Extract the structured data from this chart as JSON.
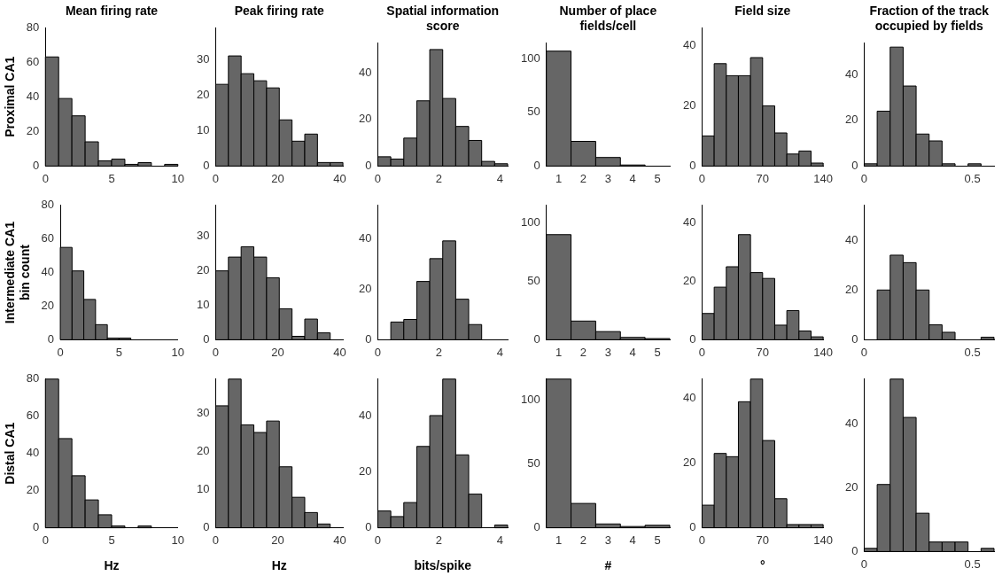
{
  "chart_data": [
    {
      "type": "histogram",
      "title": "Mean firing rate",
      "ylabel": "Proximal CA1",
      "color": "#666666",
      "bins": [
        0,
        1,
        2,
        3,
        4,
        5,
        6,
        7,
        8,
        9,
        10
      ],
      "values": [
        63,
        39,
        29,
        14,
        3,
        4,
        1,
        2,
        0,
        1
      ],
      "xlim": [
        0,
        10
      ],
      "xticks": [
        0,
        5,
        10
      ],
      "ylim": [
        0,
        80
      ],
      "yticks": [
        0,
        20,
        40,
        60,
        80
      ]
    },
    {
      "type": "histogram",
      "title": "Peak firing rate",
      "color": "#666666",
      "bins": [
        0,
        4.1,
        8.2,
        12.3,
        16.4,
        20.5,
        24.6,
        28.7,
        32.8,
        36.9,
        41
      ],
      "values": [
        23,
        31,
        26,
        24,
        22,
        13,
        7,
        9,
        1,
        1
      ],
      "xlim": [
        0,
        41
      ],
      "xticks": [
        0,
        20,
        40
      ],
      "ylim": [
        0,
        39
      ],
      "yticks": [
        0,
        10,
        20,
        30
      ]
    },
    {
      "type": "histogram",
      "title": "Spatial information score",
      "color": "#666666",
      "bins": [
        0,
        0.425,
        0.85,
        1.275,
        1.7,
        2.125,
        2.55,
        2.975,
        3.4,
        3.825,
        4.25
      ],
      "values": [
        4,
        3,
        12,
        28,
        50,
        29,
        17,
        11,
        2,
        1
      ],
      "xlim": [
        0,
        4.25
      ],
      "xticks": [
        0,
        2,
        4
      ],
      "ylim": [
        0,
        53
      ],
      "yticks": [
        0,
        20,
        40
      ]
    },
    {
      "type": "histogram",
      "title": "Number of place fields/cell",
      "color": "#666666",
      "bins": [
        0.5,
        1.5,
        2.5,
        3.5,
        4.5,
        5.5
      ],
      "values": [
        107,
        23,
        8,
        1,
        0
      ],
      "xlim": [
        0.5,
        5.5
      ],
      "xticks": [
        1,
        2,
        3,
        4,
        5
      ],
      "ylim": [
        0,
        115
      ],
      "yticks": [
        0,
        50,
        100
      ]
    },
    {
      "type": "histogram",
      "title": "Field size",
      "color": "#666666",
      "bins": [
        0,
        14,
        28,
        42,
        56,
        70,
        84,
        98,
        112,
        126,
        140
      ],
      "values": [
        10,
        34,
        30,
        30,
        36,
        20,
        11,
        4,
        5,
        1
      ],
      "xlim": [
        0,
        140
      ],
      "xticks": [
        0,
        70,
        140
      ],
      "ylim": [
        0,
        46
      ],
      "yticks": [
        0,
        20,
        40
      ]
    },
    {
      "type": "histogram",
      "title": "Fraction of the track occupied by fields",
      "color": "#666666",
      "bins": [
        0,
        0.06,
        0.12,
        0.18,
        0.24,
        0.3,
        0.36,
        0.42,
        0.48,
        0.54,
        0.6
      ],
      "values": [
        1,
        24,
        52,
        35,
        14,
        11,
        1,
        0,
        1,
        0
      ],
      "xlim": [
        0,
        0.6
      ],
      "xticks": [
        0,
        0.5
      ],
      "ylim": [
        0,
        54
      ],
      "yticks": [
        0,
        20,
        40
      ]
    },
    {
      "type": "histogram",
      "ylabel": "Intermediate CA1\nbin count",
      "color": "#666666",
      "bins": [
        0,
        1,
        2,
        3,
        4,
        5,
        6,
        7,
        8,
        9,
        10
      ],
      "values": [
        55,
        41,
        24,
        9,
        1,
        1,
        0,
        0,
        0,
        0
      ],
      "xlim": [
        0,
        10
      ],
      "xticks": [
        0,
        5,
        10
      ],
      "ylim": [
        0,
        80
      ],
      "yticks": [
        0,
        20,
        40,
        60,
        80
      ]
    },
    {
      "type": "histogram",
      "color": "#666666",
      "bins": [
        0,
        4.1,
        8.2,
        12.3,
        16.4,
        20.5,
        24.6,
        28.7,
        32.8,
        36.9,
        41
      ],
      "values": [
        20,
        24,
        27,
        24,
        18,
        9,
        1,
        6,
        2,
        0
      ],
      "xlim": [
        0,
        41
      ],
      "xticks": [
        0,
        20,
        40
      ],
      "ylim": [
        0,
        39
      ],
      "yticks": [
        0,
        10,
        20,
        30
      ]
    },
    {
      "type": "histogram",
      "color": "#666666",
      "bins": [
        0,
        0.425,
        0.85,
        1.275,
        1.7,
        2.125,
        2.55,
        2.975,
        3.4,
        3.825,
        4.25
      ],
      "values": [
        0,
        7,
        8,
        23,
        32,
        39,
        16,
        6,
        0,
        0
      ],
      "xlim": [
        0,
        4.25
      ],
      "xticks": [
        0,
        2,
        4
      ],
      "ylim": [
        0,
        53
      ],
      "yticks": [
        0,
        20,
        40
      ]
    },
    {
      "type": "histogram",
      "color": "#666666",
      "bins": [
        0.5,
        1.5,
        2.5,
        3.5,
        4.5,
        5.5
      ],
      "values": [
        90,
        16,
        7,
        2,
        1
      ],
      "xlim": [
        0.5,
        5.5
      ],
      "xticks": [
        1,
        2,
        3,
        4,
        5
      ],
      "ylim": [
        0,
        115
      ],
      "yticks": [
        0,
        50,
        100
      ]
    },
    {
      "type": "histogram",
      "color": "#666666",
      "bins": [
        0,
        14,
        28,
        42,
        56,
        70,
        84,
        98,
        112,
        126,
        140
      ],
      "values": [
        9,
        18,
        25,
        36,
        23,
        21,
        5,
        10,
        3,
        1
      ],
      "xlim": [
        0,
        140
      ],
      "xticks": [
        0,
        70,
        140
      ],
      "ylim": [
        0,
        46
      ],
      "yticks": [
        0,
        20,
        40
      ]
    },
    {
      "type": "histogram",
      "color": "#666666",
      "bins": [
        0,
        0.06,
        0.12,
        0.18,
        0.24,
        0.3,
        0.36,
        0.42,
        0.48,
        0.54,
        0.6
      ],
      "values": [
        0,
        20,
        34,
        31,
        20,
        6,
        3,
        0,
        0,
        1
      ],
      "xlim": [
        0,
        0.6
      ],
      "xticks": [
        0,
        0.5
      ],
      "ylim": [
        0,
        54
      ],
      "yticks": [
        0,
        20,
        40
      ]
    },
    {
      "type": "histogram",
      "ylabel": "Distal CA1",
      "xlabel": "Hz",
      "color": "#666666",
      "bins": [
        0,
        1,
        2,
        3,
        4,
        5,
        6,
        7,
        8,
        9,
        10
      ],
      "values": [
        80,
        48,
        28,
        15,
        7,
        1,
        0,
        1,
        0,
        0
      ],
      "xlim": [
        0,
        10
      ],
      "xticks": [
        0,
        5,
        10
      ],
      "ylim": [
        0,
        80
      ],
      "yticks": [
        0,
        20,
        40,
        60,
        80
      ]
    },
    {
      "type": "histogram",
      "xlabel": "Hz",
      "color": "#666666",
      "bins": [
        0,
        4.1,
        8.2,
        12.3,
        16.4,
        20.5,
        24.6,
        28.7,
        32.8,
        36.9,
        41
      ],
      "values": [
        32,
        39,
        27,
        25,
        28,
        16,
        8,
        4,
        1,
        0
      ],
      "xlim": [
        0,
        41
      ],
      "xticks": [
        0,
        20,
        40
      ],
      "ylim": [
        0,
        39
      ],
      "yticks": [
        0,
        10,
        20,
        30
      ]
    },
    {
      "type": "histogram",
      "xlabel": "bits/spike",
      "color": "#666666",
      "bins": [
        0,
        0.425,
        0.85,
        1.275,
        1.7,
        2.125,
        2.55,
        2.975,
        3.4,
        3.825,
        4.25
      ],
      "values": [
        6,
        4,
        9,
        29,
        40,
        53,
        26,
        12,
        0,
        1
      ],
      "xlim": [
        0,
        4.25
      ],
      "xticks": [
        0,
        2,
        4
      ],
      "ylim": [
        0,
        53
      ],
      "yticks": [
        0,
        20,
        40
      ]
    },
    {
      "type": "histogram",
      "xlabel": "#",
      "color": "#666666",
      "bins": [
        0.5,
        1.5,
        2.5,
        3.5,
        4.5,
        5.5
      ],
      "values": [
        116,
        19,
        3,
        1,
        2
      ],
      "xlim": [
        0.5,
        5.5
      ],
      "xticks": [
        1,
        2,
        3,
        4,
        5
      ],
      "ylim": [
        0,
        116
      ],
      "yticks": [
        0,
        50,
        100
      ]
    },
    {
      "type": "histogram",
      "xlabel": "°",
      "color": "#666666",
      "bins": [
        0,
        14,
        28,
        42,
        56,
        70,
        84,
        98,
        112,
        126,
        140
      ],
      "values": [
        7,
        23,
        22,
        39,
        46,
        27,
        9,
        1,
        1,
        1
      ],
      "xlim": [
        0,
        140
      ],
      "xticks": [
        0,
        70,
        140
      ],
      "ylim": [
        0,
        46
      ],
      "yticks": [
        0,
        20,
        40
      ]
    },
    {
      "type": "histogram",
      "color": "#666666",
      "bins": [
        0,
        0.06,
        0.12,
        0.18,
        0.24,
        0.3,
        0.36,
        0.42,
        0.48,
        0.54,
        0.6
      ],
      "values": [
        1,
        21,
        54,
        42,
        12,
        3,
        3,
        3,
        0,
        1
      ],
      "xlim": [
        0,
        0.6
      ],
      "xticks": [
        0,
        0.5
      ],
      "ylim": [
        0,
        54
      ],
      "yticks": [
        0,
        20,
        40
      ]
    }
  ]
}
